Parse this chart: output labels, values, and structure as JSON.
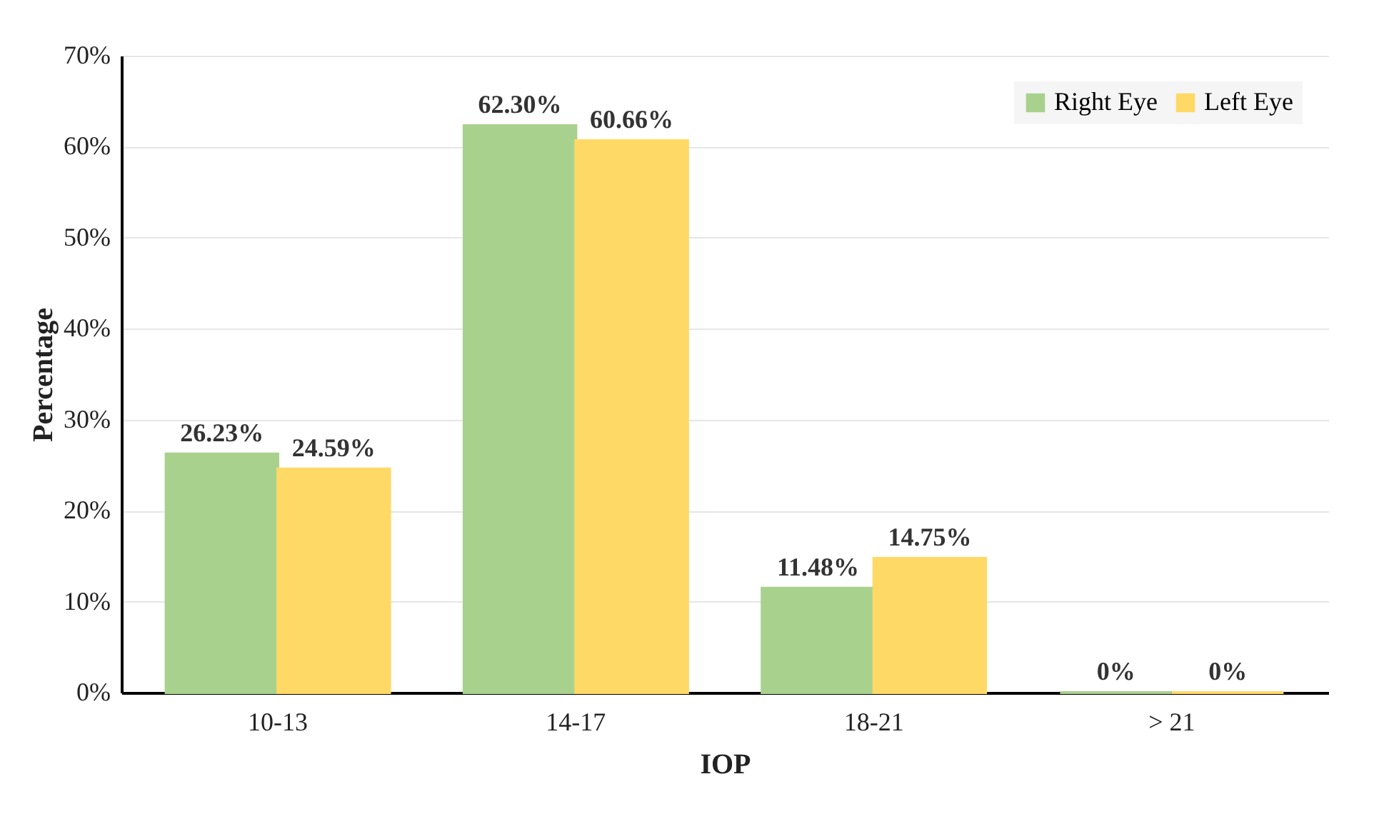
{
  "chart_data": {
    "type": "bar",
    "xlabel": "IOP",
    "ylabel": "Percentage",
    "categories": [
      "10-13",
      "14-17",
      "18-21",
      "> 21"
    ],
    "series": [
      {
        "name": "Right Eye",
        "color": "#a9d18e",
        "values": [
          26.23,
          62.3,
          11.48,
          0
        ],
        "value_labels": [
          "26.23%",
          "62.30%",
          "11.48%",
          "0%"
        ]
      },
      {
        "name": "Left Eye",
        "color": "#ffd966",
        "values": [
          24.59,
          60.66,
          14.75,
          0
        ],
        "value_labels": [
          "24.59%",
          "60.66%",
          "14.75%",
          "0%"
        ]
      }
    ],
    "ylim": [
      0,
      70
    ],
    "yticks": [
      {
        "value": 0,
        "label": "0%"
      },
      {
        "value": 10,
        "label": "10%"
      },
      {
        "value": 20,
        "label": "20%"
      },
      {
        "value": 30,
        "label": "30%"
      },
      {
        "value": 40,
        "label": "40%"
      },
      {
        "value": 50,
        "label": "50%"
      },
      {
        "value": 60,
        "label": "60%"
      },
      {
        "value": 70,
        "label": "70%"
      }
    ],
    "grid": "y",
    "legend": "top right"
  }
}
